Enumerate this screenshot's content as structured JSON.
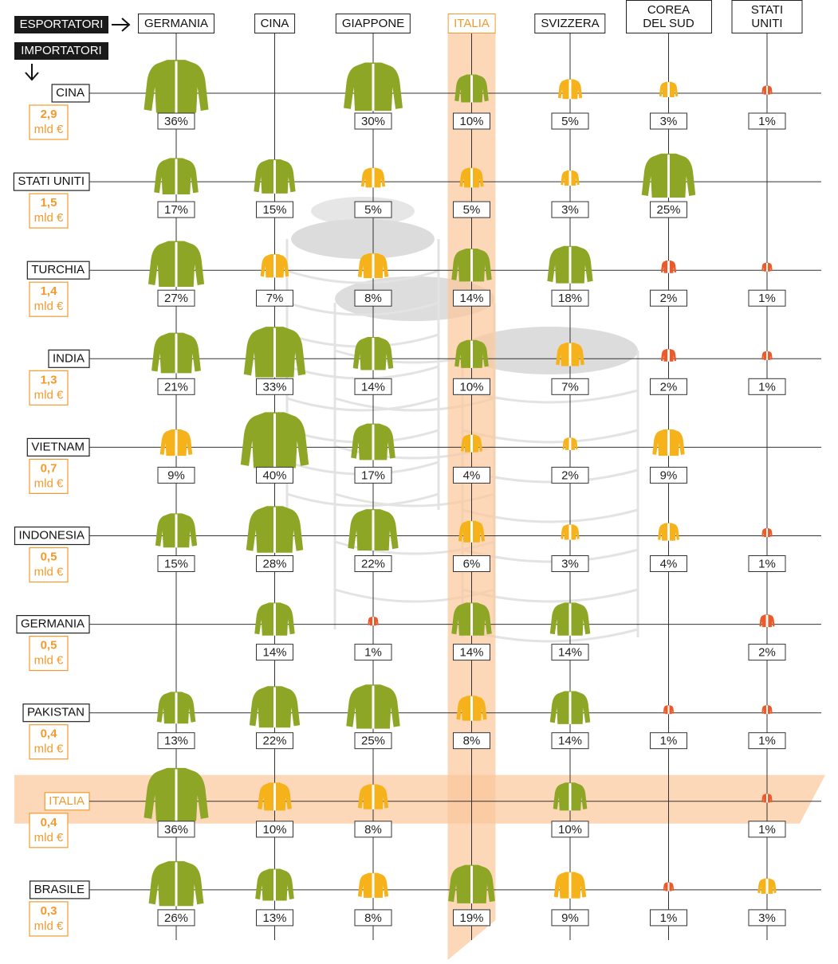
{
  "chart_data": {
    "type": "icon-matrix",
    "exporters_label": "ESPORTATORI",
    "importers_label": "IMPORTATORI",
    "categories": [
      "GERMANIA",
      "CINA",
      "GIAPPONE",
      "ITALIA",
      "SVIZZERA",
      "COREA DEL SUD",
      "STATI UNITI"
    ],
    "total_unit": "mld €",
    "highlight_category": 3,
    "highlight_series": 8,
    "highlight_color": "#fbc89b",
    "label_highlight_color": "#f39a2e",
    "series": [
      {
        "name": "CINA",
        "total": 2.9,
        "total_label": "2,9",
        "values": [
          36,
          null,
          30,
          10,
          5,
          3,
          1
        ],
        "value_labels": [
          "36%",
          null,
          "30%",
          "10%",
          "5%",
          "3%",
          "1%"
        ],
        "colors": [
          "#8ea626",
          null,
          "#8ea626",
          "#8ea626",
          "#f6b21a",
          "#f6b21a",
          "#ea5a2b"
        ]
      },
      {
        "name": "STATI UNITI",
        "total": 1.5,
        "total_label": "1,5",
        "values": [
          17,
          15,
          5,
          5,
          3,
          25,
          null
        ],
        "value_labels": [
          "17%",
          "15%",
          "5%",
          "5%",
          "3%",
          "25%",
          null
        ],
        "colors": [
          "#8ea626",
          "#8ea626",
          "#f6b21a",
          "#f6b21a",
          "#f6b21a",
          "#8ea626",
          null
        ]
      },
      {
        "name": "TURCHIA",
        "total": 1.4,
        "total_label": "1,4",
        "values": [
          27,
          7,
          8,
          14,
          18,
          2,
          1
        ],
        "value_labels": [
          "27%",
          "7%",
          "8%",
          "14%",
          "18%",
          "2%",
          "1%"
        ],
        "colors": [
          "#8ea626",
          "#f6b21a",
          "#f6b21a",
          "#8ea626",
          "#8ea626",
          "#ea5a2b",
          "#ea5a2b"
        ]
      },
      {
        "name": "INDIA",
        "total": 1.3,
        "total_label": "1,3",
        "values": [
          21,
          33,
          14,
          10,
          7,
          2,
          1
        ],
        "value_labels": [
          "21%",
          "33%",
          "14%",
          "10%",
          "7%",
          "2%",
          "1%"
        ],
        "colors": [
          "#8ea626",
          "#8ea626",
          "#8ea626",
          "#8ea626",
          "#f6b21a",
          "#ea5a2b",
          "#ea5a2b"
        ]
      },
      {
        "name": "VIETNAM",
        "total": 0.7,
        "total_label": "0,7",
        "values": [
          9,
          40,
          17,
          4,
          2,
          9,
          null
        ],
        "value_labels": [
          "9%",
          "40%",
          "17%",
          "4%",
          "2%",
          "9%",
          null
        ],
        "colors": [
          "#f6b21a",
          "#8ea626",
          "#8ea626",
          "#f6b21a",
          "#f6b21a",
          "#f6b21a",
          null
        ]
      },
      {
        "name": "INDONESIA",
        "total": 0.5,
        "total_label": "0,5",
        "values": [
          15,
          28,
          22,
          6,
          3,
          4,
          1
        ],
        "value_labels": [
          "15%",
          "28%",
          "22%",
          "6%",
          "3%",
          "4%",
          "1%"
        ],
        "colors": [
          "#8ea626",
          "#8ea626",
          "#8ea626",
          "#f6b21a",
          "#f6b21a",
          "#f6b21a",
          "#ea5a2b"
        ]
      },
      {
        "name": "GERMANIA",
        "total": 0.5,
        "total_label": "0,5",
        "values": [
          null,
          14,
          1,
          14,
          14,
          null,
          2
        ],
        "value_labels": [
          null,
          "14%",
          "1%",
          "14%",
          "14%",
          null,
          "2%"
        ],
        "colors": [
          null,
          "#8ea626",
          "#ea5a2b",
          "#8ea626",
          "#8ea626",
          null,
          "#ea5a2b"
        ]
      },
      {
        "name": "PAKISTAN",
        "total": 0.4,
        "total_label": "0,4",
        "values": [
          13,
          22,
          25,
          8,
          14,
          1,
          1
        ],
        "value_labels": [
          "13%",
          "22%",
          "25%",
          "8%",
          "14%",
          "1%",
          "1%"
        ],
        "colors": [
          "#8ea626",
          "#8ea626",
          "#8ea626",
          "#f6b21a",
          "#8ea626",
          "#ea5a2b",
          "#ea5a2b"
        ]
      },
      {
        "name": "ITALIA",
        "total": 0.4,
        "total_label": "0,4",
        "values": [
          36,
          10,
          8,
          null,
          10,
          null,
          1
        ],
        "value_labels": [
          "36%",
          "10%",
          "8%",
          null,
          "10%",
          null,
          "1%"
        ],
        "colors": [
          "#8ea626",
          "#f6b21a",
          "#f6b21a",
          null,
          "#8ea626",
          null,
          "#ea5a2b"
        ]
      },
      {
        "name": "BRASILE",
        "total": 0.3,
        "total_label": "0,3",
        "values": [
          26,
          13,
          8,
          19,
          9,
          1,
          3
        ],
        "value_labels": [
          "26%",
          "13%",
          "8%",
          "19%",
          "9%",
          "1%",
          "3%"
        ],
        "colors": [
          "#8ea626",
          "#8ea626",
          "#f6b21a",
          "#8ea626",
          "#f6b21a",
          "#ea5a2b",
          "#f6b21a"
        ]
      }
    ]
  }
}
